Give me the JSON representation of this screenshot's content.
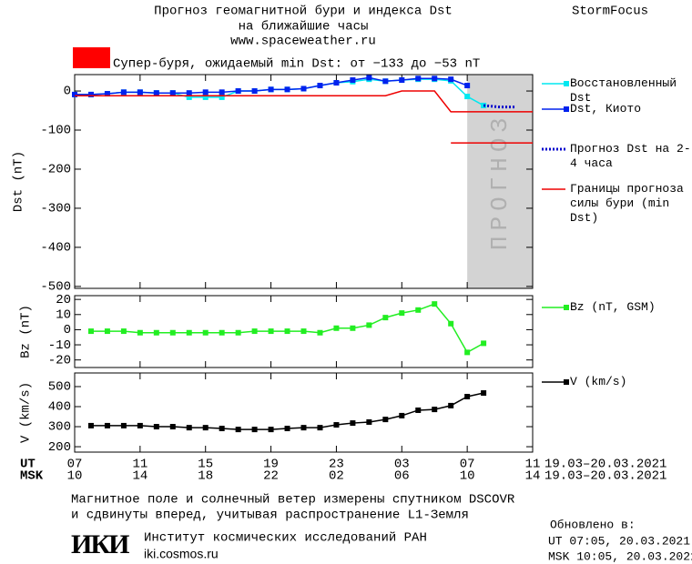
{
  "header": {
    "title_lines": [
      "Прогноз геомагнитной бури и индекса Dst",
      "на ближайшие часы"
    ],
    "source": "www.spaceweather.ru",
    "brand": "StormFocus",
    "alert": "Супер-буря, ожидаемый min Dst: от −133 до −53 nT",
    "alert_color": "#ff0000"
  },
  "chart_data": [
    {
      "type": "line",
      "ylabel": "Dst (nT)",
      "xlim": [
        0,
        28
      ],
      "xticks": [
        0,
        4,
        8,
        12,
        16,
        20,
        24,
        28
      ],
      "ylim": [
        -505,
        42
      ],
      "yticks": [
        0,
        -100,
        -200,
        -300,
        -400,
        -500
      ],
      "forecast_span": [
        24,
        28
      ],
      "forecast_label": "ПРОГНОЗ",
      "series": [
        {
          "name": "Восстановленный Dst",
          "color": "#00e8f0",
          "markers": true,
          "x": [
            0,
            1,
            2,
            3,
            4,
            5,
            6,
            7,
            8,
            9,
            10,
            11,
            12,
            13,
            14,
            15,
            16,
            17,
            18,
            19,
            20,
            21,
            22,
            23,
            24,
            25
          ],
          "values": [
            -9,
            -9,
            -7,
            -3,
            -3,
            -5,
            -5,
            -16,
            -16,
            -16,
            0,
            0,
            4,
            4,
            6,
            14,
            21,
            24,
            30,
            25,
            28,
            30,
            30,
            26,
            -14,
            -37
          ]
        },
        {
          "name": "Dst, Киото",
          "color": "#0022ee",
          "markers": true,
          "x": [
            0,
            1,
            2,
            3,
            4,
            5,
            6,
            7,
            8,
            9,
            10,
            11,
            12,
            13,
            14,
            15,
            16,
            17,
            18,
            19,
            20,
            21,
            22,
            23,
            24
          ],
          "values": [
            -9,
            -9,
            -7,
            -3,
            -3,
            -5,
            -5,
            -5,
            -3,
            -3,
            0,
            0,
            4,
            4,
            6,
            14,
            21,
            28,
            34,
            25,
            28,
            32,
            32,
            30,
            14
          ]
        },
        {
          "name": "Прогноз Dst на 2-4 часа",
          "color": "#0000cc",
          "dash": "dotted",
          "x": [
            25,
            26,
            27
          ],
          "values": [
            -37,
            -41,
            -41
          ]
        },
        {
          "name": "Границы прогноза силы бури (min Dst)",
          "color": "#ee0000",
          "x": [
            0,
            19,
            20,
            22,
            23,
            28
          ],
          "values": [
            -12,
            -12,
            0,
            0,
            -53,
            -53
          ]
        },
        {
          "color": "#ee0000",
          "x": [
            23,
            28
          ],
          "values": [
            -133,
            -133
          ]
        }
      ]
    },
    {
      "type": "line",
      "ylabel": "Bz (nT)",
      "xlim": [
        0,
        28
      ],
      "xticks": [
        0,
        4,
        8,
        12,
        16,
        20,
        24,
        28
      ],
      "ylim": [
        -25,
        22.5
      ],
      "yticks": [
        20,
        10,
        0,
        -10,
        -20
      ],
      "series": [
        {
          "name": "Bz (nT, GSM)",
          "color": "#22ee22",
          "markers": true,
          "x": [
            1,
            2,
            3,
            4,
            5,
            6,
            7,
            8,
            9,
            10,
            11,
            12,
            13,
            14,
            15,
            16,
            17,
            18,
            19,
            20,
            21,
            22,
            23,
            24,
            25
          ],
          "values": [
            -1,
            -1,
            -1,
            -2,
            -2,
            -2,
            -2,
            -2,
            -2,
            -2,
            -1,
            -1,
            -1,
            -1,
            -2,
            1,
            1,
            3,
            8,
            11,
            13,
            17,
            4,
            -15,
            -9
          ]
        }
      ]
    },
    {
      "type": "line",
      "ylabel": "V (km/s)",
      "xlim": [
        0,
        28
      ],
      "ylim": [
        173,
        568
      ],
      "yticks": [
        500,
        400,
        300,
        200
      ],
      "xticks": [
        {
          "value": 0,
          "label": "07"
        },
        {
          "value": 4,
          "label": "11"
        },
        {
          "value": 8,
          "label": "15"
        },
        {
          "value": 12,
          "label": "19"
        },
        {
          "value": 16,
          "label": "23"
        },
        {
          "value": 20,
          "label": "03"
        },
        {
          "value": 24,
          "label": "07"
        },
        {
          "value": 28,
          "label": "11"
        }
      ],
      "xticks_msk": [
        "10",
        "14",
        "18",
        "22",
        "02",
        "06",
        "10",
        "14"
      ],
      "xlabel_ut": "UT",
      "xlabel_msk": "MSK",
      "date_range_ut": "19.03–20.03.2021",
      "date_range_msk": "19.03–20.03.2021",
      "series": [
        {
          "name": "V (km/s)",
          "color": "#000000",
          "markers": true,
          "x": [
            1,
            2,
            3,
            4,
            5,
            6,
            7,
            8,
            9,
            10,
            11,
            12,
            13,
            14,
            15,
            16,
            17,
            18,
            19,
            20,
            21,
            22,
            23,
            24,
            25
          ],
          "values": [
            305,
            305,
            305,
            305,
            300,
            300,
            295,
            295,
            291,
            286,
            286,
            286,
            291,
            295,
            295,
            309,
            318,
            323,
            336,
            355,
            382,
            386,
            405,
            450,
            468
          ]
        }
      ]
    }
  ],
  "footer": {
    "note_lines": [
      "Магнитное поле и солнечный ветер измерены спутником DSCOVR",
      "и сдвинуты вперед, учитывая распространение L1-Земля"
    ],
    "logo": "ИКИ",
    "institute": "Институт космических исследований РАН",
    "site": "iki.cosmos.ru",
    "updated": "Обновлено в:",
    "updated_ut": "UT  07:05, 20.03.2021",
    "updated_msk": "MSK 10:05, 20.03.2021"
  }
}
